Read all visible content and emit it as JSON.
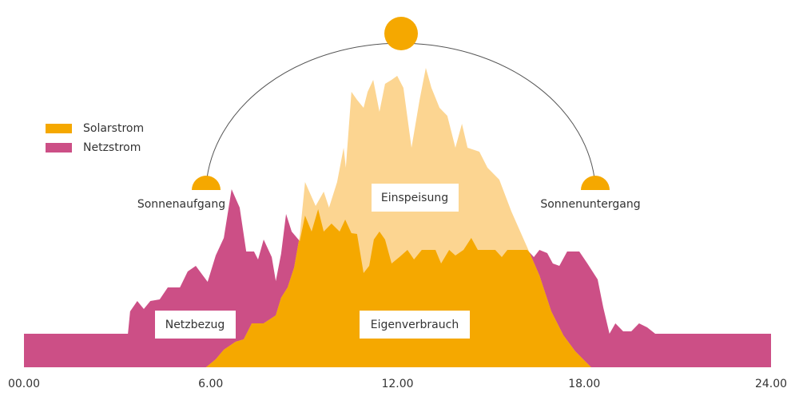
{
  "chart_data": {
    "type": "area",
    "xlim": [
      0,
      24
    ],
    "ylim": [
      0,
      100
    ],
    "xticks": [
      {
        "value": 0,
        "label": "00.00"
      },
      {
        "value": 6,
        "label": "6.00"
      },
      {
        "value": 12,
        "label": "12.00"
      },
      {
        "value": 18,
        "label": "18.00"
      },
      {
        "value": 24,
        "label": "24.00"
      }
    ],
    "surplus_color": "#fcd591",
    "series": [
      {
        "name": "Solarstrom",
        "color": "#f5a800",
        "x": [
          5.85,
          6.16,
          6.42,
          6.8,
          7.06,
          7.32,
          7.7,
          8.09,
          8.26,
          8.47,
          8.68,
          8.86,
          9.03,
          9.37,
          9.63,
          9.8,
          10.06,
          10.27,
          10.34,
          10.52,
          10.7,
          10.91,
          11.04,
          11.22,
          11.42,
          11.6,
          11.81,
          11.99,
          12.19,
          12.45,
          12.71,
          12.91,
          13.09,
          13.35,
          13.6,
          13.86,
          14.07,
          14.25,
          14.63,
          14.89,
          15.27,
          15.66,
          16.17,
          16.56,
          16.94,
          17.33,
          17.71,
          18.22
        ],
        "values": [
          0,
          2.5,
          5.5,
          8,
          8.75,
          13.75,
          13.75,
          16.25,
          21.75,
          25,
          31.25,
          41.25,
          58,
          50.5,
          55,
          50,
          58,
          68.75,
          62.5,
          86.25,
          83.75,
          81.25,
          86.25,
          90,
          80,
          88.75,
          90,
          91.25,
          87.5,
          68.75,
          83.75,
          93.75,
          87.5,
          81.25,
          78.75,
          68.75,
          76.25,
          68.75,
          67.5,
          62.5,
          58.75,
          48.75,
          37.5,
          28.75,
          17.5,
          10,
          5,
          0
        ]
      },
      {
        "name": "Netzstrom",
        "color": "#cc4f86",
        "x": [
          0,
          3.34,
          3.41,
          3.64,
          3.85,
          4.06,
          4.36,
          4.62,
          5.01,
          5.26,
          5.52,
          5.9,
          6.16,
          6.42,
          6.67,
          6.93,
          7.14,
          7.39,
          7.52,
          7.7,
          7.96,
          8.09,
          8.26,
          8.42,
          8.6,
          8.86,
          9.03,
          9.24,
          9.45,
          9.63,
          9.88,
          10.14,
          10.32,
          10.52,
          10.7,
          10.91,
          11.09,
          11.24,
          11.42,
          11.6,
          11.81,
          12.06,
          12.32,
          12.53,
          12.78,
          13.22,
          13.4,
          13.66,
          13.86,
          14.12,
          14.37,
          14.58,
          15.14,
          15.35,
          15.53,
          16.17,
          16.38,
          16.56,
          16.81,
          16.99,
          17.2,
          17.45,
          17.84,
          18.1,
          18.43,
          18.61,
          18.81,
          19.0,
          19.25,
          19.51,
          19.76,
          20.02,
          20.28,
          24
        ],
        "values": [
          10.5,
          10.5,
          17.5,
          20.75,
          18.25,
          20.75,
          21.25,
          25,
          25,
          30,
          31.75,
          26.75,
          35,
          40.5,
          55.75,
          50,
          36.25,
          36.25,
          33.75,
          40,
          34.5,
          27,
          35.5,
          48,
          42.5,
          39.5,
          47.5,
          42.5,
          49.5,
          42.5,
          45,
          42.5,
          46.25,
          42,
          41.75,
          29.5,
          31.75,
          40,
          42.5,
          40,
          32.5,
          34.5,
          36.75,
          33.75,
          36.75,
          36.75,
          32.5,
          36.75,
          35,
          36.75,
          40.5,
          36.75,
          36.75,
          34.5,
          36.75,
          36.75,
          34.5,
          36.75,
          35.75,
          32.5,
          31.75,
          36.25,
          36.25,
          32.5,
          27.5,
          18.75,
          10.5,
          13.75,
          11.25,
          11.25,
          13.75,
          12.5,
          10.5,
          10.5
        ]
      }
    ],
    "annotations": [
      "Sonnenaufgang",
      "Sonnenuntergang",
      "Einspeisung",
      "Eigenverbrauch",
      "Netzbezug"
    ]
  }
}
